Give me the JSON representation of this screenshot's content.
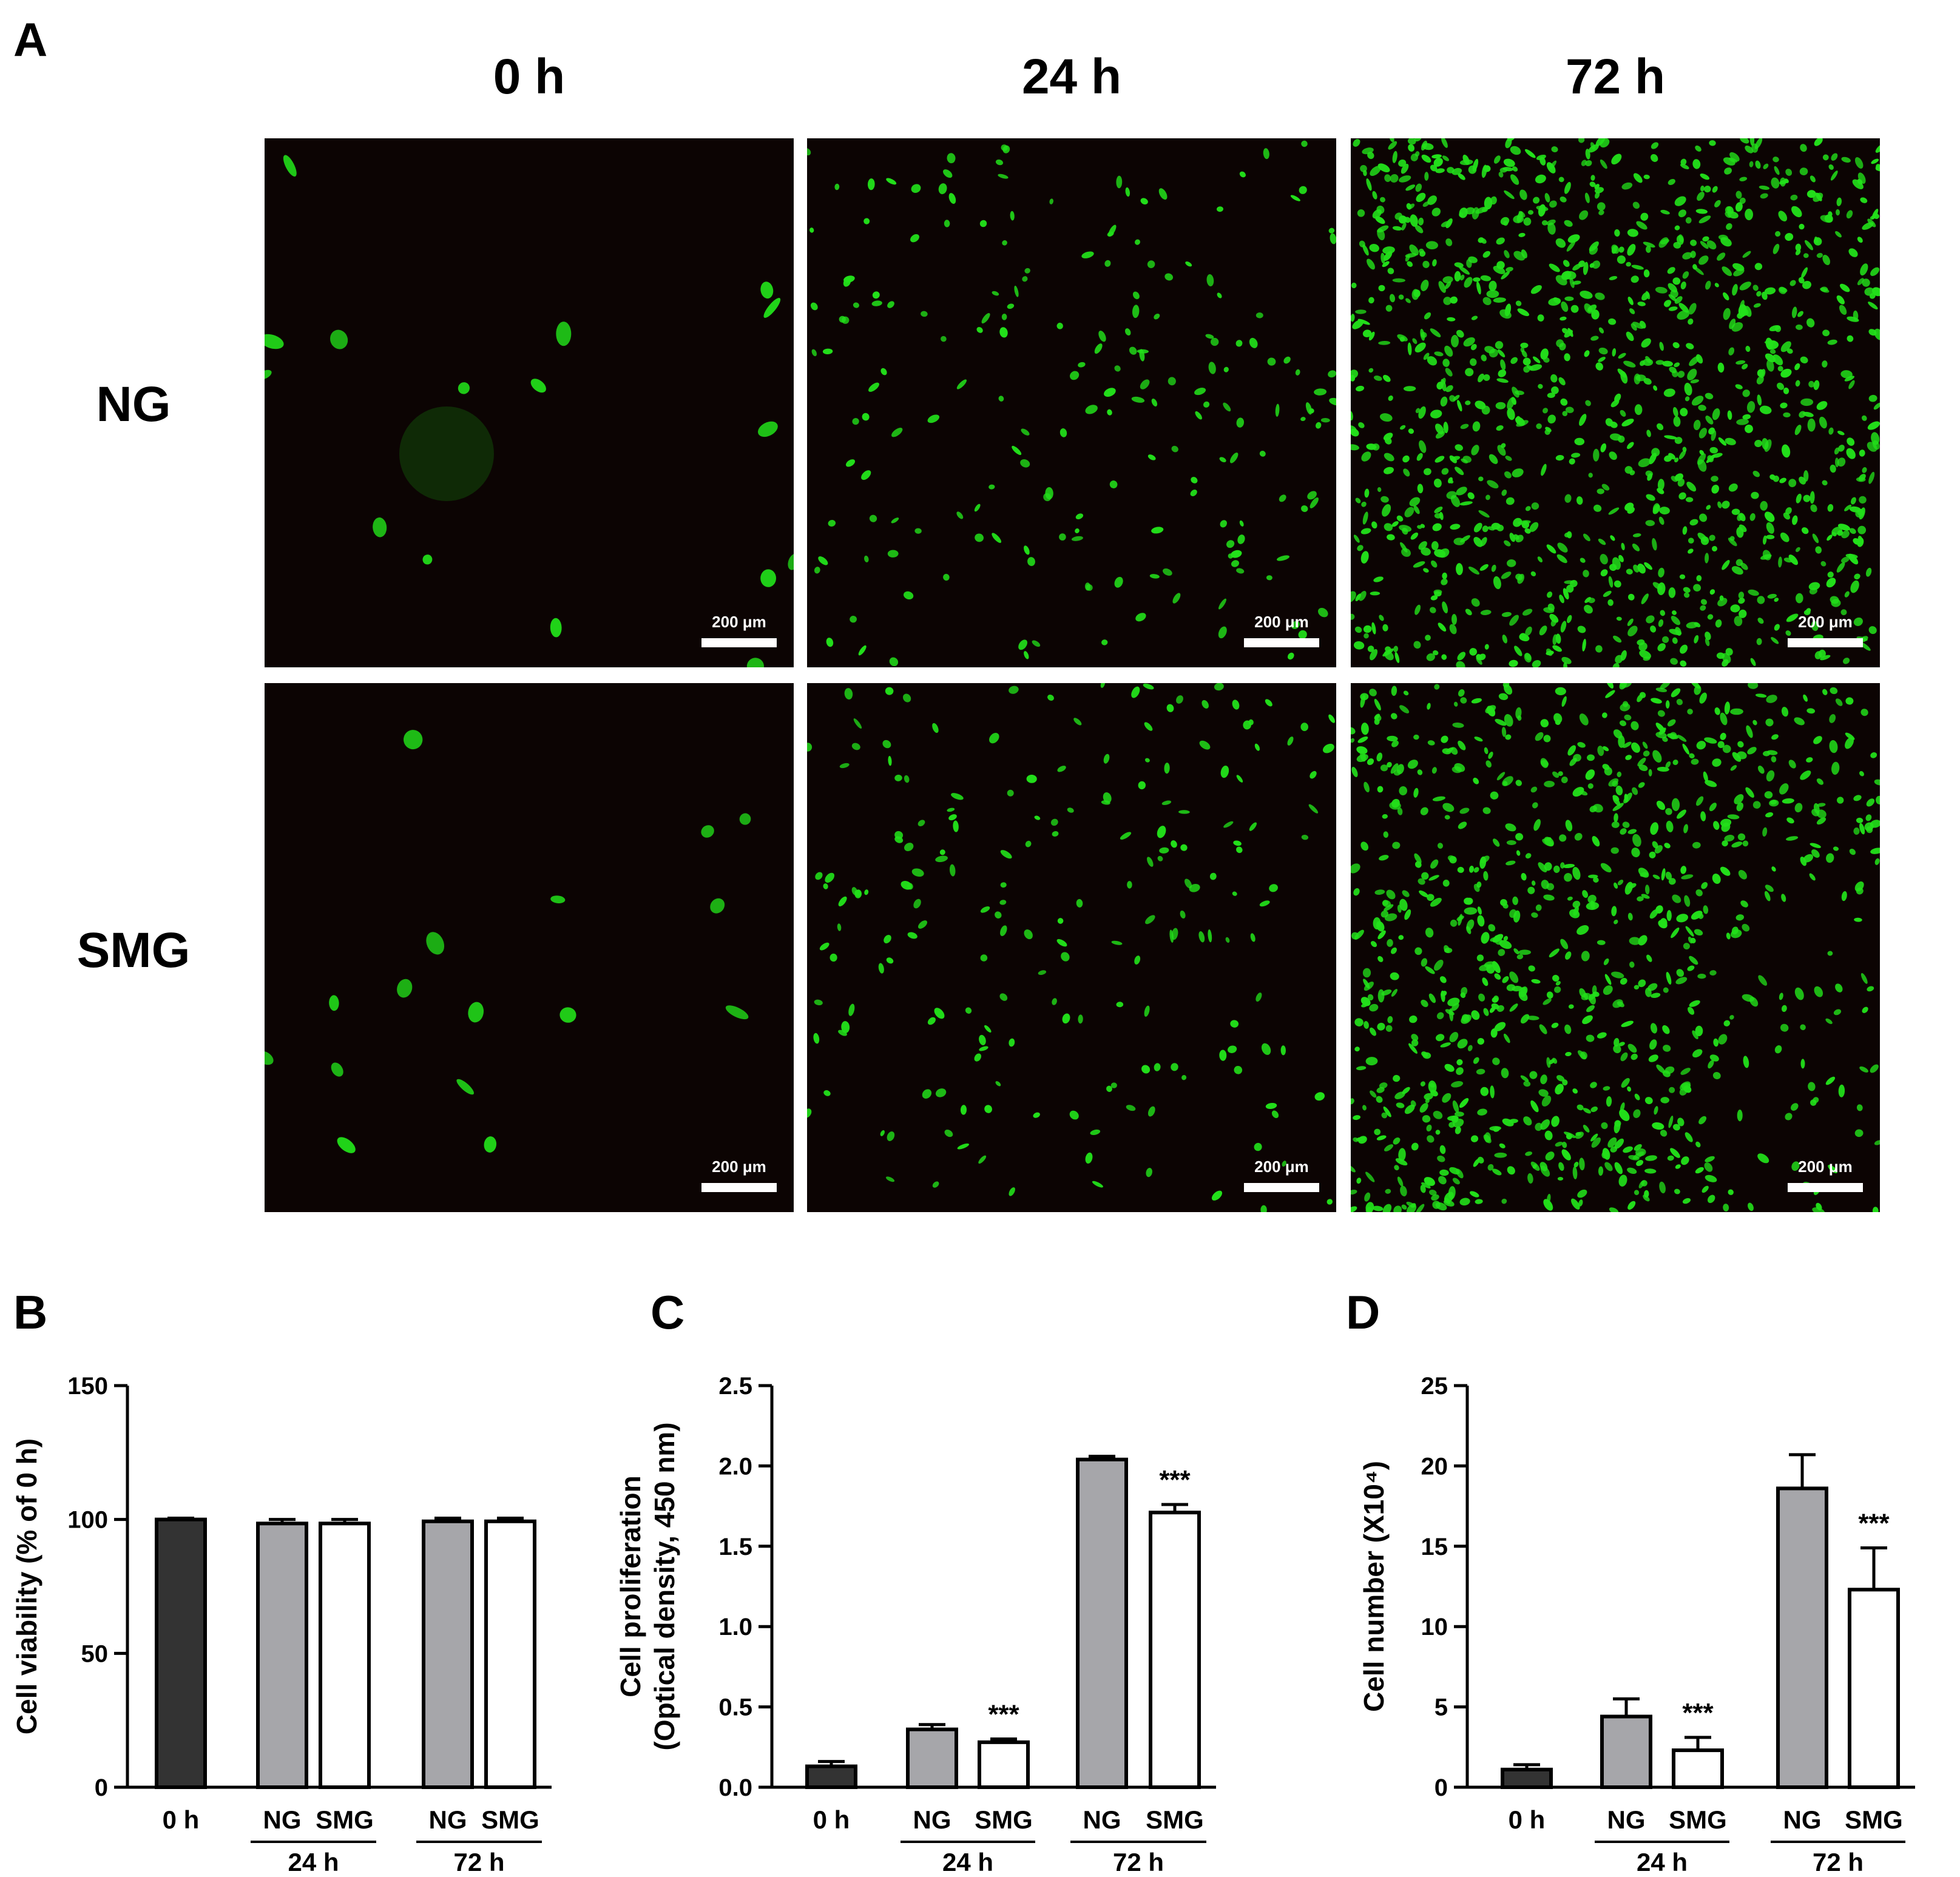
{
  "figure": {
    "panel_labels": [
      "A",
      "B",
      "C",
      "D"
    ],
    "column_headers": [
      "0 h",
      "24 h",
      "72 h"
    ],
    "row_headers": [
      "NG",
      "SMG"
    ],
    "scale_bar_label": "200 μm",
    "colors": {
      "cell_fluorescence": "#22e01a",
      "background": "#0c0403",
      "dark_bar": "#333333",
      "ng_bar": "#a6a6aa",
      "smg_bar": "#ffffff"
    },
    "micrographs": [
      {
        "row": "NG",
        "time": "0 h",
        "density": "sparse"
      },
      {
        "row": "NG",
        "time": "24 h",
        "density": "medium"
      },
      {
        "row": "NG",
        "time": "72 h",
        "density": "confluent"
      },
      {
        "row": "SMG",
        "time": "0 h",
        "density": "sparse"
      },
      {
        "row": "SMG",
        "time": "24 h",
        "density": "medium"
      },
      {
        "row": "SMG",
        "time": "72 h",
        "density": "dense"
      }
    ]
  },
  "chart_data": [
    {
      "panel": "B",
      "type": "bar",
      "ylabel": "Cell viability (% of 0 h)",
      "ylim": [
        0,
        150
      ],
      "yticks": [
        0,
        50,
        100,
        150
      ],
      "bar_labels": [
        "0 h",
        "NG",
        "SMG",
        "NG",
        "SMG"
      ],
      "groups": [
        "24 h",
        "72 h"
      ],
      "values": [
        100,
        98.5,
        98.5,
        99.3,
        99.3
      ],
      "errors": [
        0.5,
        1.5,
        1.5,
        1.2,
        1.2
      ],
      "significance": [
        "",
        "",
        "",
        "",
        ""
      ]
    },
    {
      "panel": "C",
      "type": "bar",
      "ylabel": "Cell proliferation\n(Optical density, 450 nm)",
      "ylim": [
        0,
        2.5
      ],
      "yticks": [
        "0.0",
        "0.5",
        "1.0",
        "1.5",
        "2.0",
        "2.5"
      ],
      "bar_labels": [
        "0 h",
        "NG",
        "SMG",
        "NG",
        "SMG"
      ],
      "groups": [
        "24 h",
        "72 h"
      ],
      "values": [
        0.13,
        0.36,
        0.28,
        2.04,
        1.71
      ],
      "errors": [
        0.03,
        0.03,
        0.02,
        0.02,
        0.05
      ],
      "significance": [
        "",
        "",
        "***",
        "",
        "***"
      ]
    },
    {
      "panel": "D",
      "type": "bar",
      "ylabel": "Cell number (X10⁴)",
      "ylim": [
        0,
        25
      ],
      "yticks": [
        0,
        5,
        10,
        15,
        20,
        25
      ],
      "bar_labels": [
        "0 h",
        "NG",
        "SMG",
        "NG",
        "SMG"
      ],
      "groups": [
        "24 h",
        "72 h"
      ],
      "values": [
        1.1,
        4.4,
        2.3,
        18.6,
        12.3
      ],
      "errors": [
        0.3,
        1.1,
        0.8,
        2.1,
        2.6
      ],
      "significance": [
        "",
        "",
        "***",
        "",
        "***"
      ]
    }
  ]
}
